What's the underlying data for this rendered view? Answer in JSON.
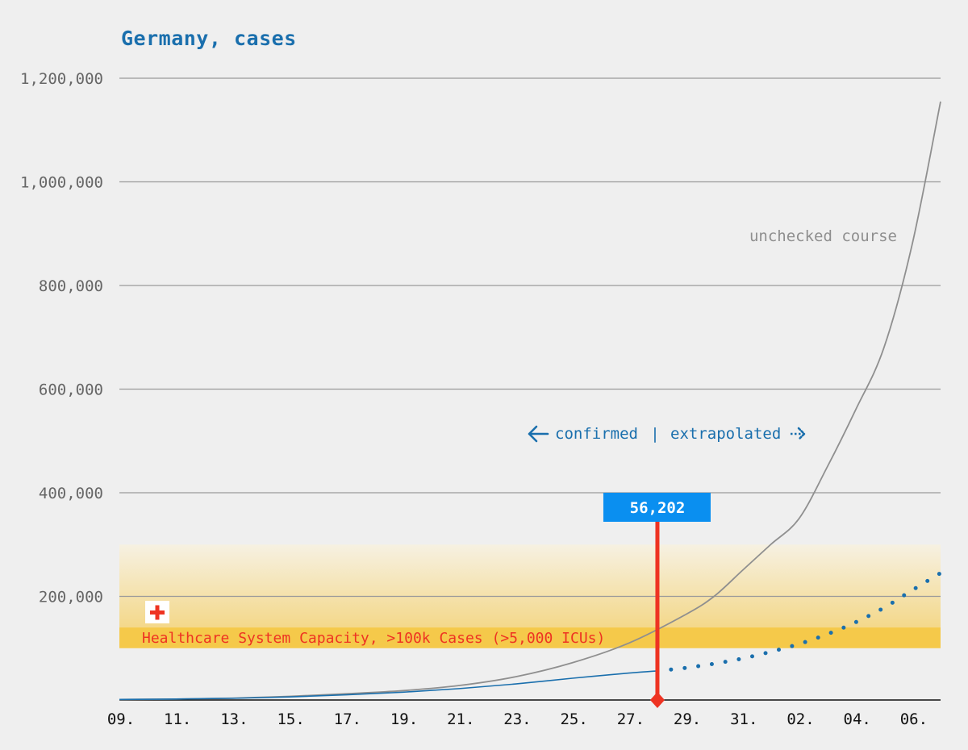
{
  "chart_data": {
    "type": "line",
    "title": "Germany, cases",
    "xlabel": "",
    "ylabel": "",
    "x_ticks": [
      "09.",
      "11.",
      "13.",
      "15.",
      "17.",
      "19.",
      "21.",
      "23.",
      "25.",
      "27.",
      "29.",
      "31.",
      "02.",
      "04.",
      "06."
    ],
    "x_range_days": [
      0,
      29
    ],
    "ylim": [
      0,
      1200000
    ],
    "y_ticks": [
      0,
      200000,
      400000,
      600000,
      800000,
      1000000,
      1200000
    ],
    "y_tick_labels": [
      "",
      "200,000",
      "400,000",
      "600,000",
      "800,000",
      "1,000,000",
      "1,200,000"
    ],
    "grid": true,
    "series": [
      {
        "name": "unchecked course",
        "style": "solid",
        "color": "#8f8f8f",
        "points": [
          [
            0,
            1000
          ],
          [
            2,
            1800
          ],
          [
            4,
            3500
          ],
          [
            6,
            7000
          ],
          [
            8,
            12000
          ],
          [
            10,
            18000
          ],
          [
            12,
            28000
          ],
          [
            14,
            45000
          ],
          [
            16,
            72000
          ],
          [
            18,
            110000
          ],
          [
            20,
            165000
          ],
          [
            21,
            200000
          ],
          [
            22,
            250000
          ],
          [
            23,
            300000
          ],
          [
            24,
            350000
          ],
          [
            25,
            450000
          ],
          [
            26,
            560000
          ],
          [
            27,
            680000
          ],
          [
            28,
            880000
          ],
          [
            29,
            1155000
          ]
        ]
      },
      {
        "name": "confirmed",
        "style": "solid",
        "color": "#1a6fad",
        "points": [
          [
            0,
            1000
          ],
          [
            2,
            1800
          ],
          [
            4,
            3300
          ],
          [
            6,
            6000
          ],
          [
            8,
            10000
          ],
          [
            10,
            15000
          ],
          [
            12,
            22000
          ],
          [
            14,
            31000
          ],
          [
            16,
            42000
          ],
          [
            18,
            52000
          ],
          [
            19,
            56202
          ]
        ]
      },
      {
        "name": "extrapolated",
        "style": "dotted",
        "color": "#1a6fad",
        "points": [
          [
            19,
            56202
          ],
          [
            20,
            62000
          ],
          [
            21,
            70000
          ],
          [
            22,
            80000
          ],
          [
            23,
            93000
          ],
          [
            24,
            108000
          ],
          [
            25,
            127000
          ],
          [
            26,
            150000
          ],
          [
            27,
            178000
          ],
          [
            28,
            212000
          ],
          [
            29,
            245000
          ]
        ]
      }
    ],
    "highlight": {
      "x": 19,
      "value": 56202,
      "label": "56,202",
      "color": "#ee3322",
      "label_bg": "#0a8ff0"
    },
    "capacity_band": {
      "label": "Healthcare System Capacity, >100k Cases (>5,000 ICUs)",
      "ymin": 100000,
      "ymax": 140000,
      "fade_top": 300000,
      "color": "#f5c94a",
      "text_color": "#ee3322"
    },
    "annotations": {
      "unchecked": "unchecked course",
      "confirmed": "confirmed",
      "separator": "|",
      "extrapolated": "extrapolated"
    },
    "colors": {
      "title": "#1a6fad",
      "grid": "#9a9a9a",
      "axis_label": "#666666",
      "x_label": "#111111",
      "background": "#efefef"
    }
  }
}
